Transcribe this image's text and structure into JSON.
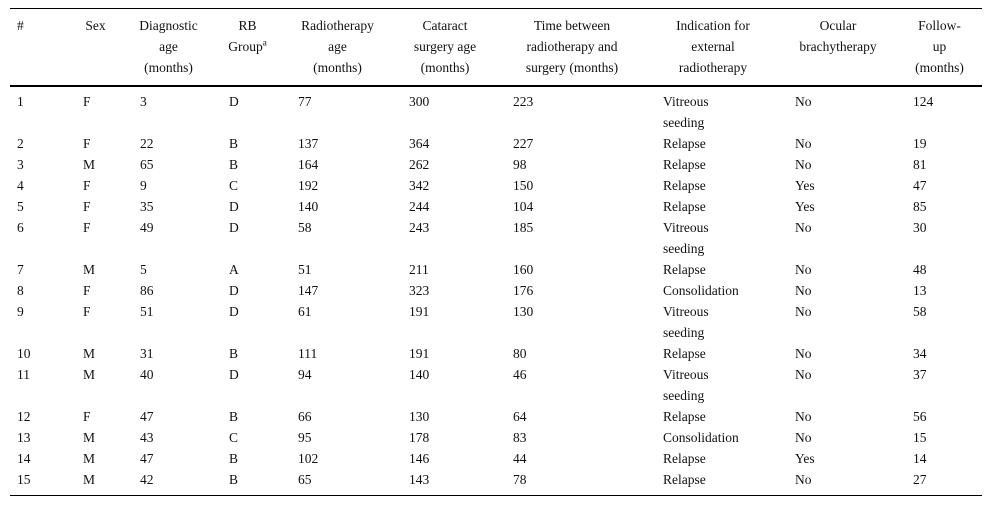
{
  "table": {
    "columns": [
      {
        "label": "#"
      },
      {
        "label": "Sex"
      },
      {
        "label": "Diagnostic\nage\n(months)"
      },
      {
        "label": "RB\nGroup",
        "sup": "a"
      },
      {
        "label": "Radiotherapy\nage\n(months)"
      },
      {
        "label": "Cataract\nsurgery age\n(months)"
      },
      {
        "label": "Time between\nradiotherapy and\nsurgery (months)"
      },
      {
        "label": "Indication for\nexternal\nradiotherapy"
      },
      {
        "label": "Ocular\nbrachytherapy"
      },
      {
        "label": "Follow-\nup\n(months)"
      }
    ],
    "rows": [
      [
        "1",
        "F",
        "3",
        "D",
        "77",
        "300",
        "223",
        "Vitreous\nseeding",
        "No",
        "124"
      ],
      [
        "2",
        "F",
        "22",
        "B",
        "137",
        "364",
        "227",
        "Relapse",
        "No",
        "19"
      ],
      [
        "3",
        "M",
        "65",
        "B",
        "164",
        "262",
        "98",
        "Relapse",
        "No",
        "81"
      ],
      [
        "4",
        "F",
        "9",
        "C",
        "192",
        "342",
        "150",
        "Relapse",
        "Yes",
        "47"
      ],
      [
        "5",
        "F",
        "35",
        "D",
        "140",
        "244",
        "104",
        "Relapse",
        "Yes",
        "85"
      ],
      [
        "6",
        "F",
        "49",
        "D",
        "58",
        "243",
        "185",
        "Vitreous\nseeding",
        "No",
        "30"
      ],
      [
        "7",
        "M",
        "5",
        "A",
        "51",
        "211",
        "160",
        "Relapse",
        "No",
        "48"
      ],
      [
        "8",
        "F",
        "86",
        "D",
        "147",
        "323",
        "176",
        "Consolidation",
        "No",
        "13"
      ],
      [
        "9",
        "F",
        "51",
        "D",
        "61",
        "191",
        "130",
        "Vitreous\nseeding",
        "No",
        "58"
      ],
      [
        "10",
        "M",
        "31",
        "B",
        "111",
        "191",
        "80",
        "Relapse",
        "No",
        "34"
      ],
      [
        "11",
        "M",
        "40",
        "D",
        "94",
        "140",
        "46",
        "Vitreous\nseeding",
        "No",
        "37"
      ],
      [
        "12",
        "F",
        "47",
        "B",
        "66",
        "130",
        "64",
        "Relapse",
        "No",
        "56"
      ],
      [
        "13",
        "M",
        "43",
        "C",
        "95",
        "178",
        "83",
        "Consolidation",
        "No",
        "15"
      ],
      [
        "14",
        "M",
        "47",
        "B",
        "102",
        "146",
        "44",
        "Relapse",
        "Yes",
        "14"
      ],
      [
        "15",
        "M",
        "42",
        "B",
        "65",
        "143",
        "78",
        "Relapse",
        "No",
        "27"
      ]
    ]
  }
}
